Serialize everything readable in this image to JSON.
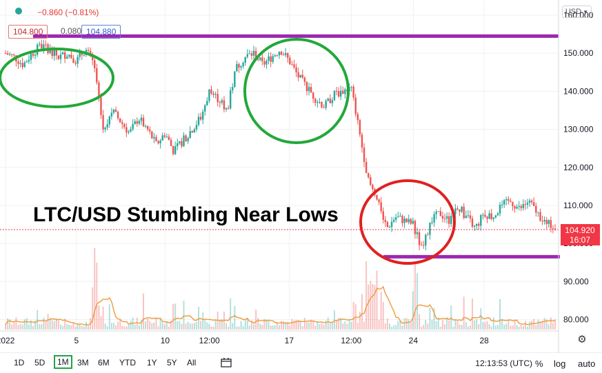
{
  "header": {
    "change": "−0.860 (−0.81%)",
    "bid": "104.800",
    "spread": "0.080",
    "ask": "104.880",
    "currency": "USD",
    "currency_chevron": "chevron-down-icon"
  },
  "price_tag": {
    "price": "104.920",
    "countdown": "16:07",
    "color": "#f23645"
  },
  "colors": {
    "up": "#26a69a",
    "down": "#ef5350",
    "level": "#9c27b0",
    "circle_green": "#22a83a",
    "circle_red": "#e02020",
    "ma": "#ef9a3a"
  },
  "annotation": {
    "text": "LTC/USD Stumbling Near Lows"
  },
  "toolbar": {
    "timeframes": [
      "1D",
      "5D",
      "1M",
      "3M",
      "6M",
      "YTD",
      "1Y",
      "5Y",
      "All"
    ],
    "active": "1M",
    "time": "12:13:53 (UTC)",
    "options": [
      "%",
      "log",
      "auto"
    ]
  },
  "chart_data": {
    "type": "line",
    "title": "",
    "x_tick_labels": [
      "2022",
      "5",
      "10",
      "12:00",
      "17",
      "12:00",
      "24",
      "28"
    ],
    "y_tick_labels": [
      "160.000",
      "150.000",
      "140.000",
      "130.000",
      "120.000",
      "110.000",
      "100.000",
      "90.000",
      "80.000"
    ],
    "ylim": [
      77,
      164
    ],
    "x_range_days": [
      1,
      32
    ],
    "grid": true,
    "series": [
      {
        "values_x_days": [
          1.0,
          1.5,
          2.0,
          2.5,
          3.0,
          3.5,
          4.0,
          4.5,
          5.0,
          5.5,
          6.0,
          6.5,
          7.0,
          7.5,
          8.0,
          8.5,
          9.0,
          9.5,
          10.0,
          10.5,
          11.0,
          11.5,
          12.0,
          12.5,
          13.0,
          13.5,
          14.0,
          14.5,
          15.0,
          15.5,
          16.0,
          16.5,
          17.0,
          17.5,
          18.0,
          18.5,
          19.0,
          19.5,
          20.0,
          20.5,
          21.0,
          21.5,
          22.0,
          22.5,
          23.0,
          23.5,
          24.0,
          24.5,
          25.0,
          25.5,
          26.0,
          26.5,
          27.0,
          27.5,
          28.0,
          28.5,
          29.0,
          29.5,
          30.0,
          30.5,
          31.0,
          31.5,
          32.0
        ],
        "values_y": [
          150,
          149,
          147,
          150,
          152,
          151,
          149,
          150,
          148,
          151,
          147,
          130,
          135,
          132,
          129,
          133,
          130,
          126,
          129,
          124,
          127,
          130,
          133,
          140,
          138,
          135,
          146,
          149,
          150,
          147,
          149,
          151,
          148,
          144,
          141,
          138,
          136,
          139,
          140,
          141,
          128,
          116,
          112,
          104,
          107,
          106,
          105,
          98,
          106,
          108,
          106,
          110,
          107,
          104,
          108,
          107,
          110,
          111,
          109,
          111,
          108,
          105,
          104.92
        ]
      }
    ],
    "support_level": 96.5,
    "resistance_level": 154.5
  }
}
